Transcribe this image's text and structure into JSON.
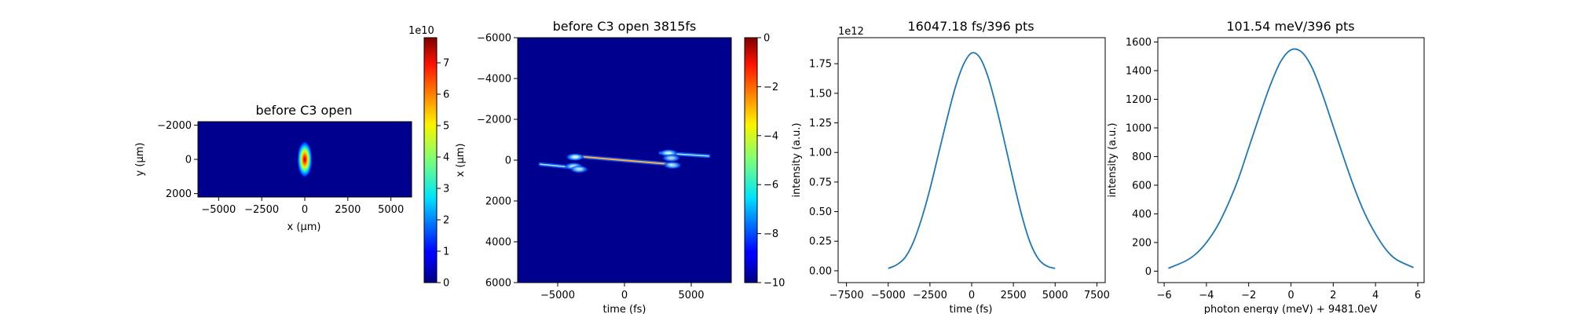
{
  "chart_data": [
    {
      "type": "heatmap",
      "title": "before C3 open",
      "xlabel": "x (μm)",
      "ylabel": "y (μm)",
      "xlim": [
        -6200,
        6200
      ],
      "ylim": [
        2200,
        -2200
      ],
      "xticks": [
        -5000,
        -2500,
        0,
        2500,
        5000
      ],
      "xtick_labels": [
        "−5000",
        "−2500",
        "0",
        "2500",
        "5000"
      ],
      "yticks": [
        -2000,
        0,
        2000
      ],
      "ytick_labels": [
        "−2000",
        "0",
        "2000"
      ],
      "colormap": "jet",
      "background_color": "#00008f",
      "spot": {
        "x": 0,
        "y": 0,
        "sigma_x": 170,
        "sigma_y": 420,
        "peak": 78000000000
      },
      "colorbar": {
        "range": [
          0,
          78000000000
        ],
        "ticks": [
          0,
          10000000000,
          20000000000,
          30000000000,
          40000000000,
          50000000000,
          60000000000,
          70000000000
        ],
        "tick_labels": [
          "0",
          "1",
          "2",
          "3",
          "4",
          "5",
          "6",
          "7"
        ],
        "offset_text": "1e10"
      }
    },
    {
      "type": "heatmap",
      "title": "before C3 open 3815fs",
      "xlabel": "time (fs)",
      "ylabel": "x (μm)",
      "xlim": [
        -8000,
        8000
      ],
      "ylim": [
        6000,
        -6000
      ],
      "xticks": [
        -5000,
        0,
        5000
      ],
      "xtick_labels": [
        "−5000",
        "0",
        "5000"
      ],
      "yticks": [
        -6000,
        -4000,
        -2000,
        0,
        2000,
        4000,
        6000
      ],
      "ytick_labels": [
        "−6000",
        "−4000",
        "−2000",
        "0",
        "2000",
        "4000",
        "6000"
      ],
      "colormap": "jet",
      "background_color": "#00008f",
      "features": [
        {
          "kind": "streak",
          "from": [
            -3800,
            -200
          ],
          "to": [
            3500,
            200
          ],
          "level": 0.9
        },
        {
          "kind": "streak",
          "from": [
            -6300,
            200
          ],
          "to": [
            -3200,
            400
          ],
          "level": 0.6
        },
        {
          "kind": "streak",
          "from": [
            2700,
            -350
          ],
          "to": [
            6300,
            -200
          ],
          "level": 0.6
        },
        {
          "kind": "blob",
          "x": -3700,
          "y": -150,
          "level": 0.6
        },
        {
          "kind": "blob",
          "x": -3800,
          "y": 300,
          "level": 0.55
        },
        {
          "kind": "blob",
          "x": -3400,
          "y": 450,
          "level": 0.5
        },
        {
          "kind": "blob",
          "x": 3300,
          "y": -350,
          "level": 0.55
        },
        {
          "kind": "blob",
          "x": 3500,
          "y": -100,
          "level": 0.5
        },
        {
          "kind": "blob",
          "x": 3600,
          "y": 250,
          "level": 0.5
        }
      ],
      "colorbar": {
        "range": [
          -10,
          0
        ],
        "ticks": [
          0,
          -2,
          -4,
          -6,
          -8,
          -10
        ],
        "tick_labels": [
          "0",
          "−2",
          "−4",
          "−6",
          "−8",
          "−10"
        ]
      }
    },
    {
      "type": "line",
      "title": "16047.18 fs/396 pts",
      "xlabel": "time (fs)",
      "ylabel": "intensity (a.u.)",
      "xlim": [
        -8000,
        8000
      ],
      "ylim": [
        -0.1,
        1.97
      ],
      "xticks": [
        -7500,
        -5000,
        -2500,
        0,
        2500,
        5000,
        7500
      ],
      "xtick_labels": [
        "−7500",
        "−5000",
        "−2500",
        "0",
        "2500",
        "5000",
        "7500"
      ],
      "yticks": [
        0,
        0.25,
        0.5,
        0.75,
        1.0,
        1.25,
        1.5,
        1.75
      ],
      "ytick_labels": [
        "0.00",
        "0.25",
        "0.50",
        "0.75",
        "1.00",
        "1.25",
        "1.50",
        "1.75"
      ],
      "offset_text": "1e12",
      "series": [
        {
          "color": "#1f77b4",
          "x": [
            -5000,
            -4500,
            -4000,
            -3500,
            -3000,
            -2500,
            -2000,
            -1500,
            -1000,
            -500,
            0,
            500,
            1000,
            1500,
            2000,
            2500,
            3000,
            3500,
            4000,
            4500,
            5000
          ],
          "y": [
            0.02,
            0.05,
            0.11,
            0.24,
            0.44,
            0.69,
            0.98,
            1.27,
            1.54,
            1.74,
            1.84,
            1.8,
            1.63,
            1.37,
            1.07,
            0.76,
            0.47,
            0.24,
            0.1,
            0.04,
            0.02
          ]
        }
      ]
    },
    {
      "type": "line",
      "title": "101.54 meV/396 pts",
      "xlabel": "photon energy (meV) + 9481.0eV",
      "ylabel": "intensity (a.u.)",
      "xlim": [
        -6.3,
        6.3
      ],
      "ylim": [
        -80,
        1630
      ],
      "xticks": [
        -6,
        -4,
        -2,
        0,
        2,
        4,
        6
      ],
      "xtick_labels": [
        "−6",
        "−4",
        "−2",
        "0",
        "2",
        "4",
        "6"
      ],
      "yticks": [
        0,
        200,
        400,
        600,
        800,
        1000,
        1200,
        1400,
        1600
      ],
      "ytick_labels": [
        "0",
        "200",
        "400",
        "600",
        "800",
        "1000",
        "1200",
        "1400",
        "1600"
      ],
      "series": [
        {
          "color": "#1f77b4",
          "x": [
            -5.8,
            -5.0,
            -4.5,
            -4.0,
            -3.5,
            -3.0,
            -2.5,
            -2.0,
            -1.5,
            -1.0,
            -0.5,
            0.0,
            0.5,
            1.0,
            1.5,
            2.0,
            2.5,
            3.0,
            3.5,
            4.0,
            4.5,
            5.0,
            5.8
          ],
          "y": [
            20,
            70,
            120,
            200,
            310,
            460,
            640,
            860,
            1080,
            1290,
            1460,
            1545,
            1530,
            1420,
            1230,
            1010,
            790,
            580,
            400,
            260,
            150,
            80,
            25
          ]
        }
      ]
    }
  ]
}
